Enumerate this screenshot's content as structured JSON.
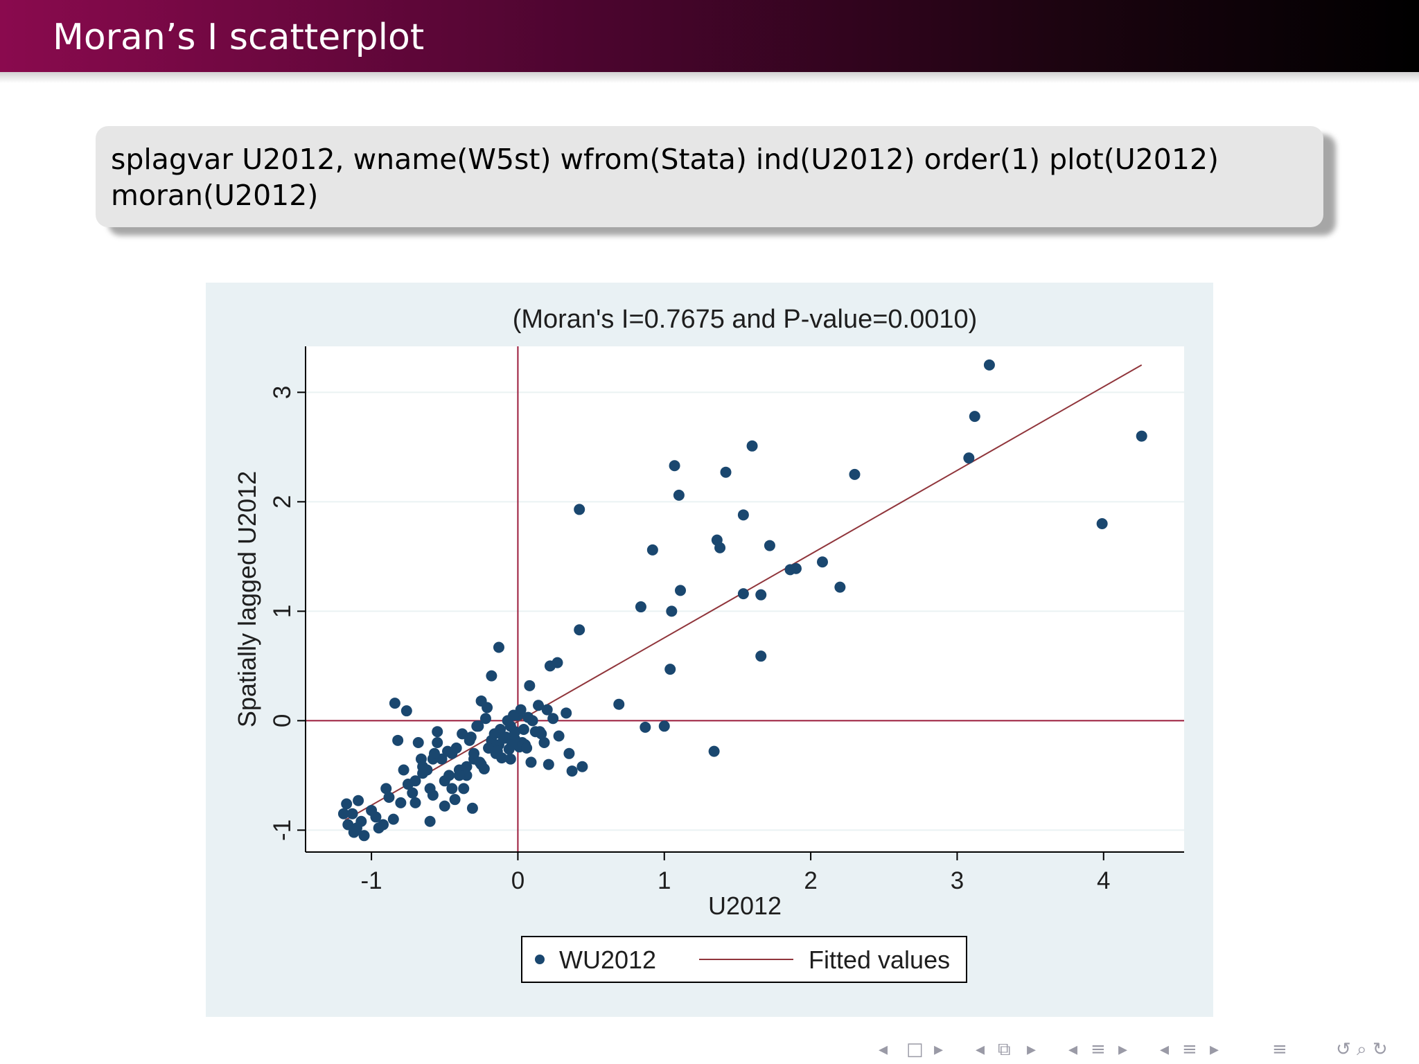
{
  "slide": {
    "title": "Moran’s I scatterplot",
    "code": {
      "line1": "splagvar U2012, wname(W5st) wfrom(Stata) ind(U2012) order(1) plot(U2012)",
      "line2": "moran(U2012)"
    },
    "navigation": {
      "first_icon": "◂",
      "frame_icon": "□",
      "next_icon": "▸",
      "subsection_icon": "⧉",
      "section_icon": "≡",
      "appendix_icon": "≡",
      "search_icon": "↺ ⌕ ↻"
    }
  },
  "colors": {
    "title_bar_start": "#8a0a4e",
    "title_bar_end": "#000000",
    "code_background": "#e6e6e6",
    "chart_panel": "#e9f1f4",
    "marker": "#1a476f",
    "fitted_line": "#90353b",
    "quadrant_lines": "#9b1b3b"
  },
  "chart_data": {
    "type": "scatter",
    "title": "(Moran's I=0.7675 and P-value=0.0010)",
    "xlabel": "U2012",
    "ylabel": "Spatially lagged U2012",
    "xlim": [
      -1.45,
      4.55
    ],
    "ylim": [
      -1.2,
      3.42
    ],
    "xticks": [
      -1,
      0,
      1,
      2,
      3,
      4
    ],
    "yticks": [
      -1,
      0,
      1,
      2,
      3
    ],
    "x_tick_labels": [
      "-1",
      "0",
      "1",
      "2",
      "3",
      "4"
    ],
    "y_tick_labels": [
      "-1",
      "0",
      "1",
      "2",
      "3"
    ],
    "grid": "horizontal",
    "reference_lines": {
      "x": 0,
      "y": 0
    },
    "legend": {
      "position": "bottom",
      "entries": [
        "WU2012",
        "Fitted values"
      ]
    },
    "series": [
      {
        "name": "WU2012",
        "kind": "scatter",
        "x": [
          3.22,
          3.12,
          3.08,
          4.26,
          3.99,
          2.3,
          1.6,
          1.07,
          1.1,
          1.42,
          1.54,
          1.72,
          1.36,
          1.38,
          2.08,
          1.9,
          1.86,
          2.2,
          0.92,
          0.84,
          1.11,
          1.05,
          1.54,
          1.66,
          1.04,
          1.66,
          0.42,
          0.42,
          0.69,
          0.87,
          1.0,
          1.34,
          -0.13,
          -0.18,
          -0.25,
          0.08,
          0.22,
          0.27,
          0.2,
          0.24,
          0.33,
          0.28,
          0.44,
          0.35,
          0.37,
          0.21,
          0.09,
          0.15,
          -0.84,
          -0.76,
          -0.82,
          -0.66,
          -0.55,
          -1.07,
          -1.17,
          -1.19,
          -1.09,
          -1.0,
          -0.95,
          -0.9,
          -1.12,
          -1.16,
          -0.88,
          -0.7,
          -0.6,
          -0.5,
          -0.4,
          -0.3,
          -0.2,
          -0.1,
          -0.05,
          0.0,
          0.03,
          -0.02,
          -0.07,
          -0.15,
          -0.25,
          -0.35,
          -0.45,
          -0.55,
          -0.65,
          -0.75,
          -0.85,
          -0.8,
          -0.72,
          -0.62,
          -0.52,
          -0.42,
          -0.32,
          -0.22,
          -0.12,
          -0.05,
          0.05,
          0.12,
          0.18,
          0.02,
          -0.03,
          -0.08,
          -0.13,
          -0.18,
          -0.28,
          -0.38,
          -0.48,
          -0.58,
          -0.68,
          -0.78,
          -0.6,
          -0.5,
          -0.45,
          -0.4,
          -0.35,
          -0.3,
          -0.26,
          -0.2,
          -0.16,
          -0.11,
          -0.06,
          -0.02,
          0.01,
          0.04,
          0.07,
          -0.7,
          -0.65,
          -0.57,
          -0.47,
          -0.37,
          -0.33,
          -0.27,
          -0.21,
          -1.05,
          -1.1,
          -1.13,
          -0.97,
          -0.92,
          -0.58,
          -0.43,
          -0.31,
          -0.23,
          -0.14,
          -0.09,
          -0.04,
          0.06,
          0.1,
          0.14,
          0.16
        ],
        "y": [
          3.25,
          2.78,
          2.4,
          2.6,
          1.8,
          2.25,
          2.51,
          2.33,
          2.06,
          2.27,
          1.88,
          1.6,
          1.65,
          1.58,
          1.45,
          1.39,
          1.38,
          1.22,
          1.56,
          1.04,
          1.19,
          1.0,
          1.16,
          1.15,
          0.47,
          0.59,
          1.93,
          0.83,
          0.15,
          -0.06,
          -0.05,
          -0.28,
          0.67,
          0.41,
          0.18,
          0.32,
          0.5,
          0.53,
          0.1,
          0.02,
          0.07,
          -0.14,
          -0.42,
          -0.3,
          -0.46,
          -0.4,
          -0.38,
          -0.1,
          0.16,
          0.09,
          -0.18,
          -0.35,
          -0.1,
          -0.92,
          -0.76,
          -0.85,
          -0.73,
          -0.82,
          -0.98,
          -0.62,
          -1.02,
          -0.95,
          -0.7,
          -0.75,
          -0.62,
          -0.55,
          -0.45,
          -0.35,
          -0.25,
          -0.15,
          -0.05,
          0.05,
          -0.2,
          -0.1,
          0.0,
          -0.3,
          -0.4,
          -0.5,
          -0.3,
          -0.2,
          -0.48,
          -0.58,
          -0.9,
          -0.75,
          -0.66,
          -0.45,
          -0.35,
          -0.25,
          -0.15,
          0.02,
          -0.08,
          -0.35,
          -0.22,
          -0.1,
          -0.2,
          0.1,
          0.05,
          -0.15,
          -0.22,
          -0.18,
          -0.05,
          -0.12,
          -0.28,
          -0.35,
          -0.2,
          -0.45,
          -0.92,
          -0.78,
          -0.62,
          -0.5,
          -0.42,
          -0.3,
          -0.38,
          -0.25,
          -0.12,
          -0.34,
          -0.26,
          -0.17,
          -0.24,
          -0.08,
          0.03,
          -0.55,
          -0.42,
          -0.3,
          -0.5,
          -0.62,
          -0.18,
          -0.05,
          0.12,
          -1.05,
          -0.98,
          -0.85,
          -0.88,
          -0.95,
          -0.68,
          -0.72,
          -0.8,
          -0.44,
          -0.28,
          -0.16,
          -0.22,
          -0.25,
          0.0,
          0.14,
          -0.12
        ]
      },
      {
        "name": "Fitted values",
        "kind": "line",
        "x": [
          -1.18,
          4.26
        ],
        "y": [
          -0.91,
          3.25
        ]
      }
    ]
  }
}
